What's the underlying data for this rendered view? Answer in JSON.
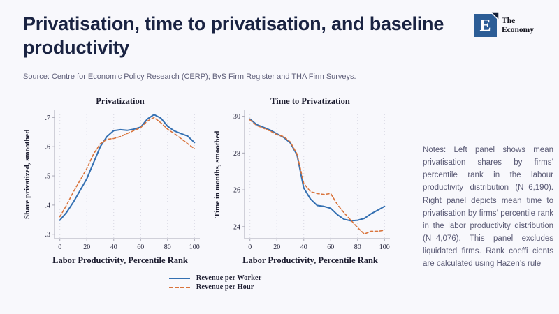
{
  "header": {
    "title": "Privatisation, time to privatisation, and baseline productivity",
    "source": "Source: Centre for Economic Policy Research (CERP); BvS Firm Register and THA Firm Surveys.",
    "logo": {
      "letter": "E",
      "line1": "The",
      "line2": "Economy"
    }
  },
  "colors": {
    "background": "#f8f8fc",
    "title_text": "#1a2342",
    "muted_text": "#5a5a75",
    "logo_blue": "#2c5d96",
    "logo_dark": "#101d36",
    "line_blue": "#3470b2",
    "line_orange": "#d9743c",
    "axis": "#a9a9b6",
    "grid": "#d7d7e2"
  },
  "chart_data": [
    {
      "type": "line",
      "title": "Privatization",
      "xlabel": "Labor Productivity, Percentile Rank",
      "ylabel": "Share privatized, smoothed",
      "xlim": [
        -4,
        104
      ],
      "ylim": [
        0.285,
        0.72
      ],
      "xticks": [
        0,
        20,
        40,
        60,
        80,
        100
      ],
      "yticks": [
        0.3,
        0.4,
        0.5,
        0.6,
        0.7
      ],
      "ytick_labels": [
        ".3",
        ".4",
        ".5",
        ".6",
        ".7"
      ],
      "grid": "vertical-dotted",
      "legend_position": "below-center",
      "x": [
        0,
        5,
        10,
        15,
        20,
        25,
        30,
        35,
        40,
        45,
        50,
        55,
        60,
        65,
        70,
        75,
        80,
        85,
        90,
        95,
        100
      ],
      "series": [
        {
          "name": "Revenue per Worker",
          "color": "#3470b2",
          "dash": "solid",
          "width": 2,
          "values": [
            0.348,
            0.375,
            0.41,
            0.45,
            0.49,
            0.545,
            0.6,
            0.635,
            0.655,
            0.658,
            0.656,
            0.66,
            0.667,
            0.695,
            0.71,
            0.698,
            0.67,
            0.654,
            0.645,
            0.636,
            0.614
          ]
        },
        {
          "name": "Revenue per Hour",
          "color": "#d9743c",
          "dash": "dashed",
          "width": 1.6,
          "values": [
            0.36,
            0.4,
            0.445,
            0.485,
            0.525,
            0.575,
            0.61,
            0.625,
            0.628,
            0.635,
            0.645,
            0.655,
            0.665,
            0.688,
            0.7,
            0.682,
            0.66,
            0.645,
            0.628,
            0.61,
            0.593
          ]
        }
      ]
    },
    {
      "type": "line",
      "title": "Time to Privatization",
      "xlabel": "Labor Productivity, Percentile Rank",
      "ylabel": "Time in months, smoothed",
      "xlim": [
        -4,
        104
      ],
      "ylim": [
        23.35,
        30.25
      ],
      "xticks": [
        0,
        20,
        40,
        60,
        80,
        100
      ],
      "yticks": [
        24,
        26,
        28,
        30
      ],
      "ytick_labels": [
        "24",
        "26",
        "28",
        "30"
      ],
      "grid": "vertical-dotted",
      "x": [
        0,
        5,
        10,
        15,
        20,
        25,
        30,
        35,
        40,
        45,
        50,
        55,
        60,
        65,
        70,
        75,
        80,
        85,
        90,
        95,
        100
      ],
      "series": [
        {
          "name": "Revenue per Worker",
          "color": "#3470b2",
          "dash": "solid",
          "width": 2,
          "values": [
            29.85,
            29.55,
            29.4,
            29.25,
            29.05,
            28.85,
            28.55,
            27.9,
            26.1,
            25.5,
            25.15,
            25.1,
            25.0,
            24.65,
            24.4,
            24.32,
            24.35,
            24.45,
            24.7,
            24.9,
            25.1
          ]
        },
        {
          "name": "Revenue per Hour",
          "color": "#d9743c",
          "dash": "dashed",
          "width": 1.6,
          "values": [
            29.8,
            29.5,
            29.35,
            29.2,
            29.0,
            28.9,
            28.6,
            27.95,
            26.35,
            25.9,
            25.8,
            25.75,
            25.8,
            25.2,
            24.75,
            24.35,
            23.95,
            23.6,
            23.75,
            23.75,
            23.8
          ]
        }
      ]
    }
  ],
  "notes": {
    "text": "Notes: Left panel shows mean privatisation shares by firms’ percentile rank in the labour productivity distribution (N=6,190). Right panel depicts mean time to privatisation by firms’ percentile rank in the labor productivity distribution (N=4,076). This panel excludes liquidated firms. Rank coeffi cients are calculated using Hazen’s rule"
  }
}
